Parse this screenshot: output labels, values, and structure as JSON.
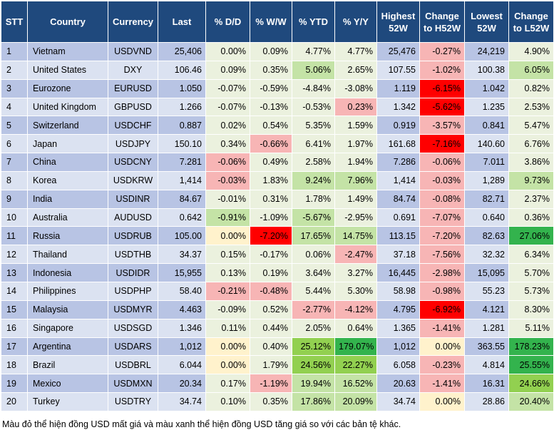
{
  "colors": {
    "header_bg": "#1f497d",
    "row_odd": "#b8c4e4",
    "row_even": "#dbe2f1",
    "neutral": "#ebf1de",
    "green_light": "#c4e3a6",
    "green_mid": "#92d050",
    "green_strong": "#33b34d",
    "red_light": "#f7b5b5",
    "red_strong": "#ff0000",
    "yellow": "#fff2cc"
  },
  "headers": [
    "STT",
    "Country",
    "Currency",
    "Last",
    "% D/D",
    "% W/W",
    "% YTD",
    "% Y/Y",
    "Highest 52W",
    "Change to H52W",
    "Lowest 52W",
    "Change to L52W"
  ],
  "rows": [
    {
      "stt": "1",
      "country": "Vietnam",
      "currency": "USDVND",
      "last": "25,406",
      "dd": "0.00%",
      "ww": "0.09%",
      "ytd": "4.77%",
      "yy": "4.77%",
      "high": "25,476",
      "ch_high": "-0.27%",
      "low": "24,219",
      "ch_low": "4.90%",
      "c": {
        "dd": "neutral",
        "ww": "neutral",
        "ytd": "neutral",
        "yy": "neutral",
        "ch_high": "red_light",
        "ch_low": "neutral"
      }
    },
    {
      "stt": "2",
      "country": "United States",
      "currency": "DXY",
      "last": "106.46",
      "dd": "0.09%",
      "ww": "0.35%",
      "ytd": "5.06%",
      "yy": "2.65%",
      "high": "107.55",
      "ch_high": "-1.02%",
      "low": "100.38",
      "ch_low": "6.05%",
      "c": {
        "dd": "neutral",
        "ww": "neutral",
        "ytd": "green_light",
        "yy": "neutral",
        "ch_high": "red_light",
        "ch_low": "green_light"
      }
    },
    {
      "stt": "3",
      "country": "Eurozone",
      "currency": "EURUSD",
      "last": "1.050",
      "dd": "-0.07%",
      "ww": "-0.59%",
      "ytd": "-4.84%",
      "yy": "-3.08%",
      "high": "1.119",
      "ch_high": "-6.15%",
      "low": "1.042",
      "ch_low": "0.82%",
      "c": {
        "dd": "neutral",
        "ww": "neutral",
        "ytd": "neutral",
        "yy": "neutral",
        "ch_high": "red_strong",
        "ch_low": "neutral"
      }
    },
    {
      "stt": "4",
      "country": "United Kingdom",
      "currency": "GBPUSD",
      "last": "1.266",
      "dd": "-0.07%",
      "ww": "-0.13%",
      "ytd": "-0.53%",
      "yy": "0.23%",
      "high": "1.342",
      "ch_high": "-5.62%",
      "low": "1.235",
      "ch_low": "2.53%",
      "c": {
        "dd": "neutral",
        "ww": "neutral",
        "ytd": "neutral",
        "yy": "red_light",
        "ch_high": "red_strong",
        "ch_low": "neutral"
      }
    },
    {
      "stt": "5",
      "country": "Switzerland",
      "currency": "USDCHF",
      "last": "0.887",
      "dd": "0.02%",
      "ww": "0.54%",
      "ytd": "5.35%",
      "yy": "1.59%",
      "high": "0.919",
      "ch_high": "-3.57%",
      "low": "0.841",
      "ch_low": "5.47%",
      "c": {
        "dd": "neutral",
        "ww": "neutral",
        "ytd": "neutral",
        "yy": "neutral",
        "ch_high": "red_light",
        "ch_low": "neutral"
      }
    },
    {
      "stt": "6",
      "country": "Japan",
      "currency": "USDJPY",
      "last": "150.10",
      "dd": "0.34%",
      "ww": "-0.66%",
      "ytd": "6.41%",
      "yy": "1.97%",
      "high": "161.68",
      "ch_high": "-7.16%",
      "low": "140.60",
      "ch_low": "6.76%",
      "c": {
        "dd": "neutral",
        "ww": "red_light",
        "ytd": "neutral",
        "yy": "neutral",
        "ch_high": "red_strong",
        "ch_low": "neutral"
      }
    },
    {
      "stt": "7",
      "country": "China",
      "currency": "USDCNY",
      "last": "7.281",
      "dd": "-0.06%",
      "ww": "0.49%",
      "ytd": "2.58%",
      "yy": "1.94%",
      "high": "7.286",
      "ch_high": "-0.06%",
      "low": "7.011",
      "ch_low": "3.86%",
      "c": {
        "dd": "red_light",
        "ww": "neutral",
        "ytd": "neutral",
        "yy": "neutral",
        "ch_high": "red_light",
        "ch_low": "neutral"
      }
    },
    {
      "stt": "8",
      "country": "Korea",
      "currency": "USDKRW",
      "last": "1,414",
      "dd": "-0.03%",
      "ww": "1.83%",
      "ytd": "9.24%",
      "yy": "7.96%",
      "high": "1,414",
      "ch_high": "-0.03%",
      "low": "1,289",
      "ch_low": "9.73%",
      "c": {
        "dd": "red_light",
        "ww": "neutral",
        "ytd": "green_light",
        "yy": "green_light",
        "ch_high": "red_light",
        "ch_low": "green_light"
      }
    },
    {
      "stt": "9",
      "country": "India",
      "currency": "USDINR",
      "last": "84.67",
      "dd": "-0.01%",
      "ww": "0.31%",
      "ytd": "1.78%",
      "yy": "1.49%",
      "high": "84.74",
      "ch_high": "-0.08%",
      "low": "82.71",
      "ch_low": "2.37%",
      "c": {
        "dd": "neutral",
        "ww": "neutral",
        "ytd": "neutral",
        "yy": "neutral",
        "ch_high": "red_light",
        "ch_low": "neutral"
      }
    },
    {
      "stt": "10",
      "country": "Australia",
      "currency": "AUDUSD",
      "last": "0.642",
      "dd": "-0.91%",
      "ww": "-1.09%",
      "ytd": "-5.67%",
      "yy": "-2.95%",
      "high": "0.691",
      "ch_high": "-7.07%",
      "low": "0.640",
      "ch_low": "0.36%",
      "c": {
        "dd": "green_light",
        "ww": "neutral",
        "ytd": "green_light",
        "yy": "neutral",
        "ch_high": "red_light",
        "ch_low": "neutral"
      }
    },
    {
      "stt": "11",
      "country": "Russia",
      "currency": "USDRUB",
      "last": "105.00",
      "dd": "0.00%",
      "ww": "-7.20%",
      "ytd": "17.65%",
      "yy": "14.75%",
      "high": "113.15",
      "ch_high": "-7.20%",
      "low": "82.63",
      "ch_low": "27.06%",
      "c": {
        "dd": "yellow",
        "ww": "red_strong",
        "ytd": "green_light",
        "yy": "green_light",
        "ch_high": "red_light",
        "ch_low": "green_strong"
      }
    },
    {
      "stt": "12",
      "country": "Thailand",
      "currency": "USDTHB",
      "last": "34.37",
      "dd": "0.15%",
      "ww": "-0.17%",
      "ytd": "0.06%",
      "yy": "-2.47%",
      "high": "37.18",
      "ch_high": "-7.56%",
      "low": "32.32",
      "ch_low": "6.34%",
      "c": {
        "dd": "neutral",
        "ww": "neutral",
        "ytd": "neutral",
        "yy": "red_light",
        "ch_high": "red_light",
        "ch_low": "neutral"
      }
    },
    {
      "stt": "13",
      "country": "Indonesia",
      "currency": "USDIDR",
      "last": "15,955",
      "dd": "0.13%",
      "ww": "0.19%",
      "ytd": "3.64%",
      "yy": "3.27%",
      "high": "16,445",
      "ch_high": "-2.98%",
      "low": "15,095",
      "ch_low": "5.70%",
      "c": {
        "dd": "neutral",
        "ww": "neutral",
        "ytd": "neutral",
        "yy": "neutral",
        "ch_high": "red_light",
        "ch_low": "neutral"
      }
    },
    {
      "stt": "14",
      "country": "Philippines",
      "currency": "USDPHP",
      "last": "58.40",
      "dd": "-0.21%",
      "ww": "-0.48%",
      "ytd": "5.44%",
      "yy": "5.30%",
      "high": "58.98",
      "ch_high": "-0.98%",
      "low": "55.23",
      "ch_low": "5.73%",
      "c": {
        "dd": "red_light",
        "ww": "red_light",
        "ytd": "neutral",
        "yy": "neutral",
        "ch_high": "red_light",
        "ch_low": "neutral"
      }
    },
    {
      "stt": "15",
      "country": "Malaysia",
      "currency": "USDMYR",
      "last": "4.463",
      "dd": "-0.09%",
      "ww": "0.52%",
      "ytd": "-2.77%",
      "yy": "-4.12%",
      "high": "4.795",
      "ch_high": "-6.92%",
      "low": "4.121",
      "ch_low": "8.30%",
      "c": {
        "dd": "neutral",
        "ww": "neutral",
        "ytd": "red_light",
        "yy": "red_light",
        "ch_high": "red_strong",
        "ch_low": "neutral"
      }
    },
    {
      "stt": "16",
      "country": "Singapore",
      "currency": "USDSGD",
      "last": "1.346",
      "dd": "0.11%",
      "ww": "0.44%",
      "ytd": "2.05%",
      "yy": "0.64%",
      "high": "1.365",
      "ch_high": "-1.41%",
      "low": "1.281",
      "ch_low": "5.11%",
      "c": {
        "dd": "neutral",
        "ww": "neutral",
        "ytd": "neutral",
        "yy": "neutral",
        "ch_high": "red_light",
        "ch_low": "neutral"
      }
    },
    {
      "stt": "17",
      "country": "Argentina",
      "currency": "USDARS",
      "last": "1,012",
      "dd": "0.00%",
      "ww": "0.40%",
      "ytd": "25.12%",
      "yy": "179.07%",
      "high": "1,012",
      "ch_high": "0.00%",
      "low": "363.55",
      "ch_low": "178.23%",
      "c": {
        "dd": "yellow",
        "ww": "neutral",
        "ytd": "green_mid",
        "yy": "green_strong",
        "ch_high": "yellow",
        "ch_low": "green_strong"
      }
    },
    {
      "stt": "18",
      "country": "Brazil",
      "currency": "USDBRL",
      "last": "6.044",
      "dd": "0.00%",
      "ww": "1.79%",
      "ytd": "24.56%",
      "yy": "22.27%",
      "high": "6.058",
      "ch_high": "-0.23%",
      "low": "4.814",
      "ch_low": "25.55%",
      "c": {
        "dd": "yellow",
        "ww": "neutral",
        "ytd": "green_mid",
        "yy": "green_mid",
        "ch_high": "red_light",
        "ch_low": "green_strong"
      }
    },
    {
      "stt": "19",
      "country": "Mexico",
      "currency": "USDMXN",
      "last": "20.34",
      "dd": "0.17%",
      "ww": "-1.19%",
      "ytd": "19.94%",
      "yy": "16.52%",
      "high": "20.63",
      "ch_high": "-1.41%",
      "low": "16.31",
      "ch_low": "24.66%",
      "c": {
        "dd": "neutral",
        "ww": "red_light",
        "ytd": "green_light",
        "yy": "green_light",
        "ch_high": "red_light",
        "ch_low": "green_mid"
      }
    },
    {
      "stt": "20",
      "country": "Turkey",
      "currency": "USDTRY",
      "last": "34.74",
      "dd": "0.10%",
      "ww": "0.35%",
      "ytd": "17.86%",
      "yy": "20.09%",
      "high": "34.74",
      "ch_high": "0.00%",
      "low": "28.86",
      "ch_low": "20.40%",
      "c": {
        "dd": "neutral",
        "ww": "neutral",
        "ytd": "green_light",
        "yy": "green_light",
        "ch_high": "yellow",
        "ch_low": "green_light"
      }
    }
  ],
  "footnote": "Màu đỏ thể hiện đồng USD mất giá và màu xanh thể hiện đồng USD tăng giá so với các bản tệ khác."
}
